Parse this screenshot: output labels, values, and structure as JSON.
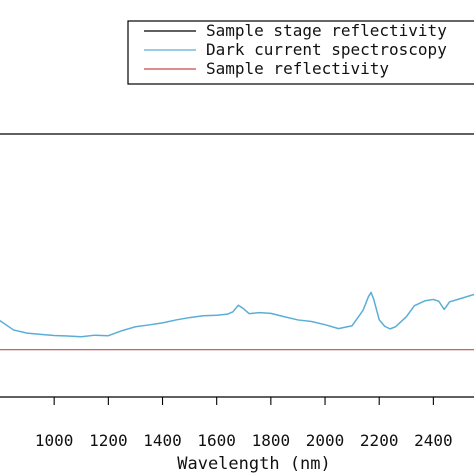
{
  "chart_data": {
    "type": "line",
    "title": "",
    "xlabel": "Wavelength (nm)",
    "ylabel": "",
    "xlim": [
      800,
      2550
    ],
    "ticks": [
      1000,
      1200,
      1400,
      1600,
      1800,
      2000,
      2200,
      2400
    ],
    "legend_position": "top-right",
    "grid": false,
    "series": [
      {
        "name": "Sample stage reflectivity",
        "color": "#000000",
        "points": []
      },
      {
        "name": "Dark current spectroscopy",
        "color": "#5aaed6",
        "points": [
          [
            800,
            0.71
          ],
          [
            850,
            0.745
          ],
          [
            900,
            0.757
          ],
          [
            950,
            0.762
          ],
          [
            1000,
            0.766
          ],
          [
            1050,
            0.768
          ],
          [
            1100,
            0.771
          ],
          [
            1150,
            0.765
          ],
          [
            1200,
            0.767
          ],
          [
            1250,
            0.748
          ],
          [
            1300,
            0.733
          ],
          [
            1350,
            0.726
          ],
          [
            1400,
            0.718
          ],
          [
            1450,
            0.707
          ],
          [
            1500,
            0.698
          ],
          [
            1550,
            0.691
          ],
          [
            1600,
            0.689
          ],
          [
            1640,
            0.685
          ],
          [
            1660,
            0.676
          ],
          [
            1680,
            0.651
          ],
          [
            1700,
            0.665
          ],
          [
            1720,
            0.683
          ],
          [
            1760,
            0.679
          ],
          [
            1800,
            0.682
          ],
          [
            1850,
            0.695
          ],
          [
            1900,
            0.707
          ],
          [
            1950,
            0.713
          ],
          [
            2000,
            0.725
          ],
          [
            2050,
            0.74
          ],
          [
            2100,
            0.729
          ],
          [
            2140,
            0.671
          ],
          [
            2160,
            0.619
          ],
          [
            2170,
            0.602
          ],
          [
            2180,
            0.629
          ],
          [
            2200,
            0.706
          ],
          [
            2220,
            0.731
          ],
          [
            2240,
            0.741
          ],
          [
            2260,
            0.733
          ],
          [
            2300,
            0.695
          ],
          [
            2330,
            0.653
          ],
          [
            2370,
            0.634
          ],
          [
            2400,
            0.629
          ],
          [
            2420,
            0.636
          ],
          [
            2440,
            0.667
          ],
          [
            2460,
            0.638
          ],
          [
            2500,
            0.626
          ],
          [
            2550,
            0.61
          ]
        ]
      },
      {
        "name": "Sample reflectivity",
        "color": "#c84a4a",
        "points": [
          [
            800,
            0.82
          ],
          [
            2550,
            0.82
          ]
        ]
      }
    ]
  }
}
